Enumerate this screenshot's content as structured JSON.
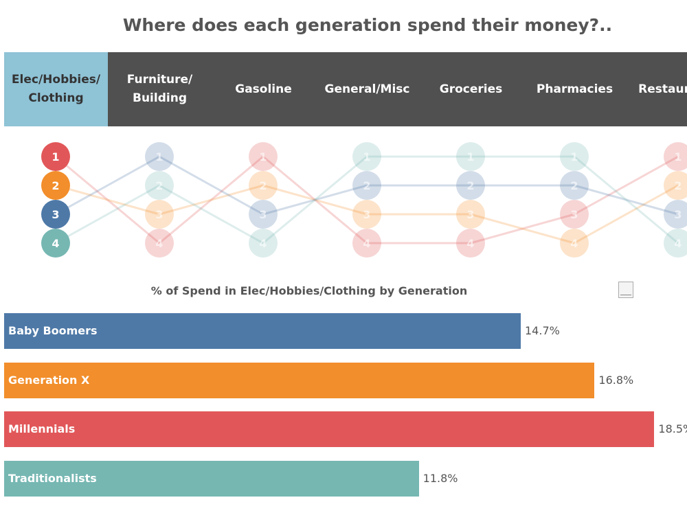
{
  "title": "Where does each generation spend their money?..",
  "tabs": [
    {
      "label": "Elec/Hobbies/\nClothing",
      "selected": true
    },
    {
      "label": "Furniture/\nBuilding",
      "selected": false
    },
    {
      "label": "Gasoline",
      "selected": false
    },
    {
      "label": "General/Misc",
      "selected": false
    },
    {
      "label": "Groceries",
      "selected": false
    },
    {
      "label": "Pharmacies",
      "selected": false
    },
    {
      "label": "Restaurants",
      "selected": false
    }
  ],
  "colors": {
    "tab_bg": "#505050",
    "tab_selected_bg": "#8fc3d6",
    "Millennials": "#e15759",
    "Generation X": "#f28e2b",
    "Baby Boomers": "#4e79a7",
    "Traditionalists": "#76b7b2"
  },
  "chart_data": [
    {
      "type": "line",
      "subtype": "bump",
      "categories": [
        "Elec/Hobbies/Clothing",
        "Furniture/Building",
        "Gasoline",
        "General/Misc",
        "Groceries",
        "Pharmacies",
        "Restaurants"
      ],
      "ranks": [
        "1",
        "2",
        "3",
        "4"
      ],
      "highlighted_category": "Elec/Hobbies/Clothing",
      "series": [
        {
          "name": "Millennials",
          "color": "#e15759",
          "values": [
            1,
            4,
            1,
            4,
            4,
            3,
            1
          ]
        },
        {
          "name": "Generation X",
          "color": "#f28e2b",
          "values": [
            2,
            3,
            2,
            3,
            3,
            4,
            2
          ]
        },
        {
          "name": "Baby Boomers",
          "color": "#4e79a7",
          "values": [
            3,
            1,
            3,
            2,
            2,
            2,
            3
          ]
        },
        {
          "name": "Traditionalists",
          "color": "#76b7b2",
          "values": [
            4,
            2,
            4,
            1,
            1,
            1,
            4
          ]
        }
      ]
    },
    {
      "type": "bar",
      "orientation": "horizontal",
      "title": "% of Spend in Elec/Hobbies/Clothing by Generation",
      "categories": [
        "Baby Boomers",
        "Generation X",
        "Millennials",
        "Traditionalists"
      ],
      "values": [
        14.7,
        16.8,
        18.5,
        11.8
      ],
      "labels": [
        "14.7%",
        "16.8%",
        "18.5%",
        "11.8%"
      ],
      "colors": [
        "#4e79a7",
        "#f28e2b",
        "#e15759",
        "#76b7b2"
      ]
    }
  ]
}
